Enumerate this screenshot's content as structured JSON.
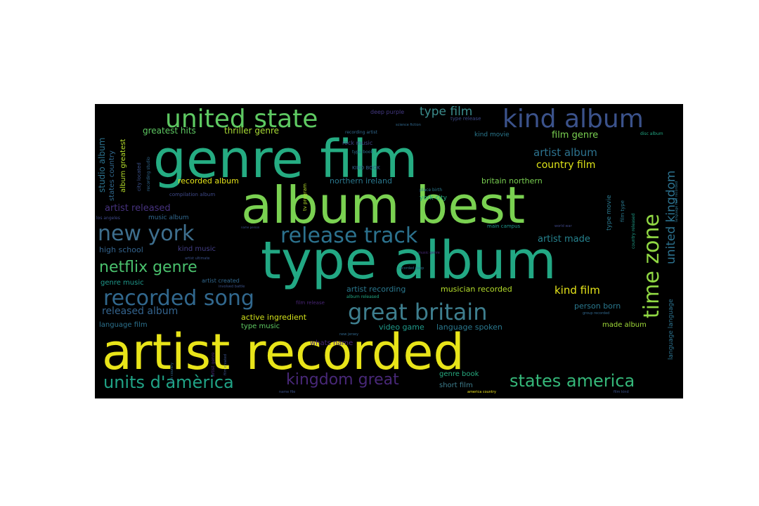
{
  "wordcloud": {
    "background_color": "#000000",
    "orientations": [
      "horizontal",
      "vertical"
    ],
    "words": [
      {
        "text": "artist recorded",
        "color": "#e8e419"
      },
      {
        "text": "type album",
        "color": "#22a884"
      },
      {
        "text": "album best",
        "color": "#7ad151"
      },
      {
        "text": "genre film",
        "color": "#25ac82"
      },
      {
        "text": "united state",
        "color": "#5ec962"
      },
      {
        "text": "kind album",
        "color": "#3b528b"
      },
      {
        "text": "release track",
        "color": "#2c728e"
      },
      {
        "text": "new york",
        "color": "#3e6f8e"
      },
      {
        "text": "great britain",
        "color": "#3e7e8e"
      },
      {
        "text": "recorded song",
        "color": "#31688e"
      },
      {
        "text": "netflix genre",
        "color": "#4ac16d"
      },
      {
        "text": "time zone",
        "color": "#90d743"
      },
      {
        "text": "united kingdom",
        "color": "#2c718e"
      },
      {
        "text": "units d'amèrica",
        "color": "#20a386"
      },
      {
        "text": "states america",
        "color": "#35b779"
      },
      {
        "text": "kingdom great",
        "color": "#482878"
      },
      {
        "text": "type film",
        "color": "#3b8c8c"
      },
      {
        "text": "greatest hits",
        "color": "#5ec962"
      },
      {
        "text": "thriller genre",
        "color": "#a8db34"
      },
      {
        "text": "deep purple",
        "color": "#443983"
      },
      {
        "text": "recording artist",
        "color": "#31688e"
      },
      {
        "text": "type release",
        "color": "#3e4989"
      },
      {
        "text": "kind movie",
        "color": "#2a788e"
      },
      {
        "text": "film genre",
        "color": "#7ad151"
      },
      {
        "text": "disc album",
        "color": "#22a884"
      },
      {
        "text": "artist album",
        "color": "#2c728e"
      },
      {
        "text": "country film",
        "color": "#dde318"
      },
      {
        "text": "rock music",
        "color": "#404688"
      },
      {
        "text": "type book",
        "color": "#2c718e"
      },
      {
        "text": "KIND BOOK",
        "color": "#33638d"
      },
      {
        "text": "compilation album",
        "color": "#3e4989"
      },
      {
        "text": "recorded album",
        "color": "#e5e419"
      },
      {
        "text": "northern ireland",
        "color": "#2a788e"
      },
      {
        "text": "britain northern",
        "color": "#7ad151"
      },
      {
        "text": "place birth",
        "color": "#2a788e"
      },
      {
        "text": "york city",
        "color": "#25ac82"
      },
      {
        "text": "tv program",
        "color": "#b5de2b"
      },
      {
        "text": "artist released",
        "color": "#46327e"
      },
      {
        "text": "music album",
        "color": "#31688e"
      },
      {
        "text": "los angeles",
        "color": "#3e4989"
      },
      {
        "text": "name person",
        "color": "#3b528b"
      },
      {
        "text": "main campus",
        "color": "#1f958b"
      },
      {
        "text": "world war",
        "color": "#3f4788"
      },
      {
        "text": "type movie",
        "color": "#2a788e"
      },
      {
        "text": "film type",
        "color": "#2a788e"
      },
      {
        "text": "country released",
        "color": "#1f9e89"
      },
      {
        "text": "artist made",
        "color": "#26828e"
      },
      {
        "text": "high school",
        "color": "#33638d"
      },
      {
        "text": "kind music",
        "color": "#433e85"
      },
      {
        "text": "music genre",
        "color": "#482878"
      },
      {
        "text": "artist ultimate",
        "color": "#3b528b"
      },
      {
        "text": "recorded deep",
        "color": "#2c728e"
      },
      {
        "text": "genre music",
        "color": "#1f988b"
      },
      {
        "text": "artist created",
        "color": "#31688e"
      },
      {
        "text": "involved battle",
        "color": "#3b528b"
      },
      {
        "text": "artist recording",
        "color": "#2a788e"
      },
      {
        "text": "musician recorded",
        "color": "#b5de2b"
      },
      {
        "text": "kind film",
        "color": "#e5e419"
      },
      {
        "text": "film release",
        "color": "#482575"
      },
      {
        "text": "album released",
        "color": "#22a884"
      },
      {
        "text": "person born",
        "color": "#2a788e"
      },
      {
        "text": "group recorded",
        "color": "#31688e"
      },
      {
        "text": "released album",
        "color": "#33638d"
      },
      {
        "text": "active ingredient",
        "color": "#d2e21b"
      },
      {
        "text": "language film",
        "color": "#2c728e"
      },
      {
        "text": "type music",
        "color": "#5ec962"
      },
      {
        "text": "video game",
        "color": "#1f9a8a"
      },
      {
        "text": "language spoken",
        "color": "#2a788e"
      },
      {
        "text": "made album",
        "color": "#a0da39"
      },
      {
        "text": "language language",
        "color": "#2c728e"
      },
      {
        "text": "whats name",
        "color": "#482878"
      },
      {
        "text": "new jersey",
        "color": "#31688e"
      },
      {
        "text": "genre book",
        "color": "#27ad81"
      },
      {
        "text": "short film",
        "color": "#3e7e8e"
      },
      {
        "text": "america country",
        "color": "#f1e51d"
      },
      {
        "text": "film kind",
        "color": "#3b528b"
      },
      {
        "text": "film country",
        "color": "#31688e"
      },
      {
        "text": "name file",
        "color": "#3b528b"
      },
      {
        "text": "artist genre",
        "color": "#482878"
      },
      {
        "text": "film created",
        "color": "#3b528b"
      },
      {
        "text": "studio album",
        "color": "#2c728e"
      },
      {
        "text": "states country",
        "color": "#31688e"
      },
      {
        "text": "album greatest",
        "color": "#b5de2b"
      },
      {
        "text": "city located",
        "color": "#3b528b"
      },
      {
        "text": "recording studio",
        "color": "#31688e"
      },
      {
        "text": "science fiction",
        "color": "#31688e"
      },
      {
        "text": "language film recorded",
        "color": "#2c728e"
      }
    ]
  }
}
